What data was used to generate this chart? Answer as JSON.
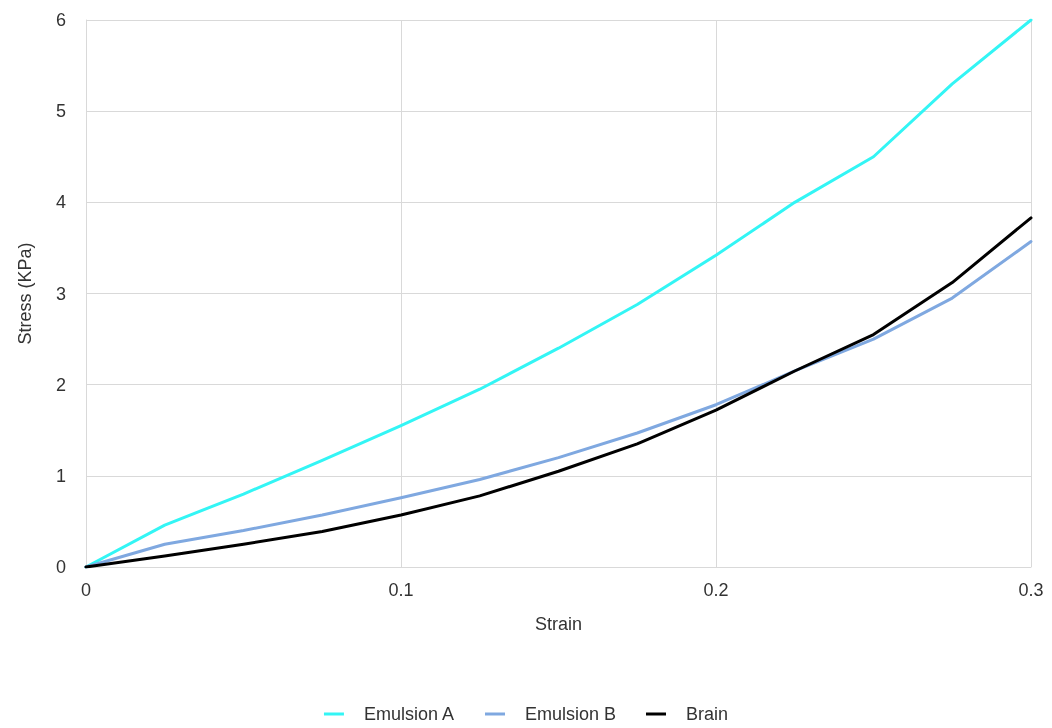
{
  "chart_data": {
    "type": "line",
    "xlabel": "Strain",
    "ylabel": "Stress (KPa)",
    "xlim": [
      0,
      0.3
    ],
    "xticks": [
      0,
      0.1,
      0.2,
      0.3
    ],
    "ylim": [
      0,
      6
    ],
    "yticks": [
      0,
      1,
      2,
      3,
      4,
      5,
      6
    ],
    "grid": true,
    "legend": "bottom",
    "marker": "none",
    "line_style": "solid",
    "x": [
      0,
      0.025,
      0.05,
      0.075,
      0.1,
      0.125,
      0.15,
      0.175,
      0.2,
      0.225,
      0.25,
      0.275,
      0.3
    ],
    "series": [
      {
        "name": "Emulsion A",
        "color": "#33f5f5",
        "values": [
          0,
          0.46,
          0.8,
          1.17,
          1.55,
          1.95,
          2.4,
          2.88,
          3.42,
          4.0,
          4.5,
          5.3,
          6.0
        ]
      },
      {
        "name": "Emulsion B",
        "color": "#7fa8e0",
        "values": [
          0,
          0.25,
          0.4,
          0.57,
          0.76,
          0.96,
          1.2,
          1.47,
          1.78,
          2.15,
          2.5,
          2.95,
          3.57
        ]
      },
      {
        "name": "Brain",
        "color": "#000000",
        "values": [
          0,
          0.12,
          0.25,
          0.39,
          0.57,
          0.78,
          1.05,
          1.35,
          1.72,
          2.15,
          2.55,
          3.12,
          3.83
        ]
      }
    ]
  }
}
